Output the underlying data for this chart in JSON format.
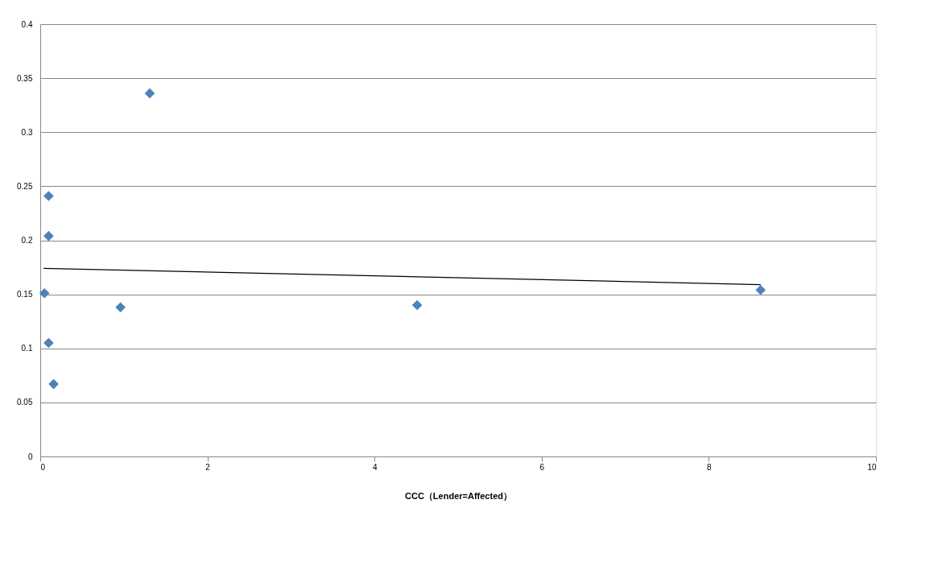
{
  "chart_data": {
    "type": "scatter",
    "xlabel": "CCC（Lender=Affected）",
    "series": [
      {
        "color": "#4f81bd",
        "marker": "diamond",
        "x": [
          0.05,
          0.1,
          0.1,
          0.1,
          0.16,
          0.96,
          1.31,
          4.51,
          8.62
        ],
        "values": [
          0.151,
          0.241,
          0.204,
          0.105,
          0.067,
          0.138,
          0.336,
          0.14,
          0.154
        ]
      },
      {
        "type": "line",
        "color": "#000000",
        "line_style": "solid",
        "x": [
          0.04,
          8.62
        ],
        "values": [
          0.174,
          0.159
        ]
      }
    ],
    "xlim": [
      0,
      10
    ],
    "xticks": [
      0,
      2,
      4,
      6,
      8,
      10
    ],
    "ylim": [
      0,
      0.4
    ],
    "yticks": [
      0,
      0.05,
      0.1,
      0.15,
      0.2,
      0.25,
      0.3,
      0.35,
      0.4
    ],
    "grid": "y"
  }
}
